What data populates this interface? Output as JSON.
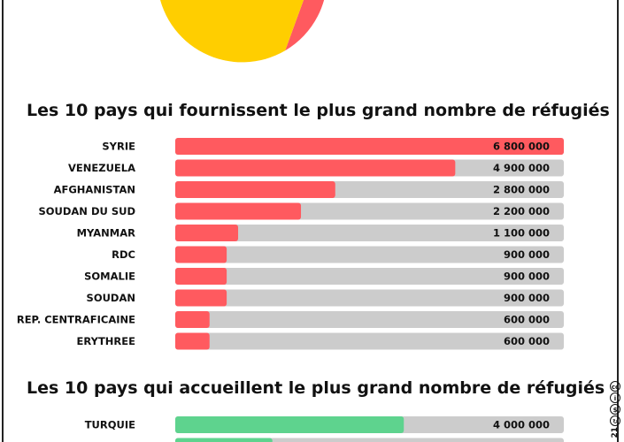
{
  "colors": {
    "pie_red": "#FF5A5F",
    "pie_yellow": "#FFCE00",
    "bar_red": "#FF5A5F",
    "bar_green": "#5ED38E",
    "track": "#CCCCCC"
  },
  "chart_data": [
    {
      "type": "pie",
      "partial": true,
      "slices": [
        {
          "name": "",
          "fraction": 0.36,
          "color": "#FF5A5F"
        },
        {
          "name": "",
          "fraction": 0.64,
          "color": "#FFCE00"
        }
      ]
    },
    {
      "type": "bar",
      "orientation": "horizontal",
      "title": "Les 10 pays qui fournissent le plus grand nombre de réfugiés",
      "categories": [
        "SYRIE",
        "VENEZUELA",
        "AFGHANISTAN",
        "SOUDAN DU SUD",
        "MYANMAR",
        "RDC",
        "SOMALIE",
        "SOUDAN",
        "REP. CENTRAFICAINE",
        "ERYTHREE"
      ],
      "values": [
        6800000,
        4900000,
        2800000,
        2200000,
        1100000,
        900000,
        900000,
        900000,
        600000,
        600000
      ],
      "value_labels": [
        "6 800 000",
        "4 900 000",
        "2 800 000",
        "2 200 000",
        "1 100 000",
        "900 000",
        "900 000",
        "900 000",
        "600 000",
        "600 000"
      ],
      "xlim": [
        0,
        6800000
      ],
      "color": "#FF5A5F",
      "grid": false
    },
    {
      "type": "bar",
      "orientation": "horizontal",
      "title": "Les 10 pays qui accueillent le plus grand nombre de réfugiés",
      "categories": [
        "TURQUIE",
        ""
      ],
      "values": [
        4000000,
        1700000
      ],
      "value_labels": [
        "4 000 000",
        ""
      ],
      "xlim": [
        0,
        6800000
      ],
      "color": "#5ED38E",
      "grid": false
    }
  ],
  "license": {
    "icons": [
      "cc-icon",
      "by-icon",
      "nc-icon",
      "sa-icon"
    ],
    "year_fragment": "21"
  }
}
